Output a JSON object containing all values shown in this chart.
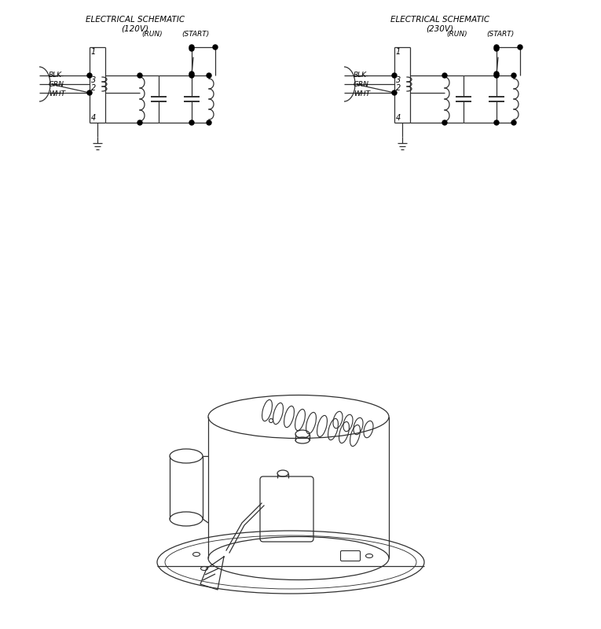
{
  "title_120v": "ELECTRICAL SCHEMATIC\n(120V)",
  "title_230v": "ELECTRICAL SCHEMATIC\n(230V)",
  "label_run": "(RUN)",
  "label_start": "(START)",
  "wire_labels": [
    "BLK",
    "GRN",
    "WHT"
  ],
  "bg_color": "#ffffff",
  "line_color": "#303030",
  "text_color": "#000000",
  "font_size_title": 7.5,
  "font_size_label": 6.5,
  "font_size_node": 7
}
